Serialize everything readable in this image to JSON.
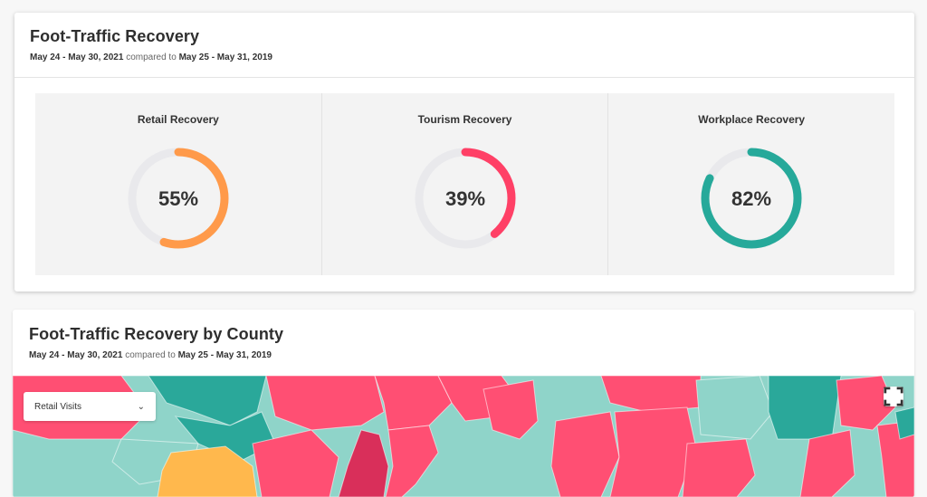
{
  "overview": {
    "title": "Foot-Traffic Recovery",
    "range_current": "May 24 - May 30, 2021",
    "compared_to": "compared to",
    "range_baseline": "May 25 - May 31, 2019",
    "gauges": [
      {
        "label": "Retail Recovery",
        "value": 55,
        "display": "55%",
        "color": "#ff9a4a"
      },
      {
        "label": "Tourism Recovery",
        "value": 39,
        "display": "39%",
        "color": "#ff4066"
      },
      {
        "label": "Workplace Recovery",
        "value": 82,
        "display": "82%",
        "color": "#26a99a"
      }
    ],
    "track_color": "#e9e9ec"
  },
  "county": {
    "title": "Foot-Traffic Recovery by County",
    "range_current": "May 24 - May 30, 2021",
    "compared_to": "compared to",
    "range_baseline": "May 25 - May 31, 2019",
    "dropdown": {
      "selected": "Retail Visits",
      "icon": "chevron-down-icon"
    },
    "fullscreen_icon": "fullscreen-icon",
    "palette": {
      "pink": "#ff4f73",
      "dark_pink": "#d92f5a",
      "light_teal": "#8fd4c9",
      "teal": "#2aa89a",
      "orange": "#ffb84d"
    }
  }
}
